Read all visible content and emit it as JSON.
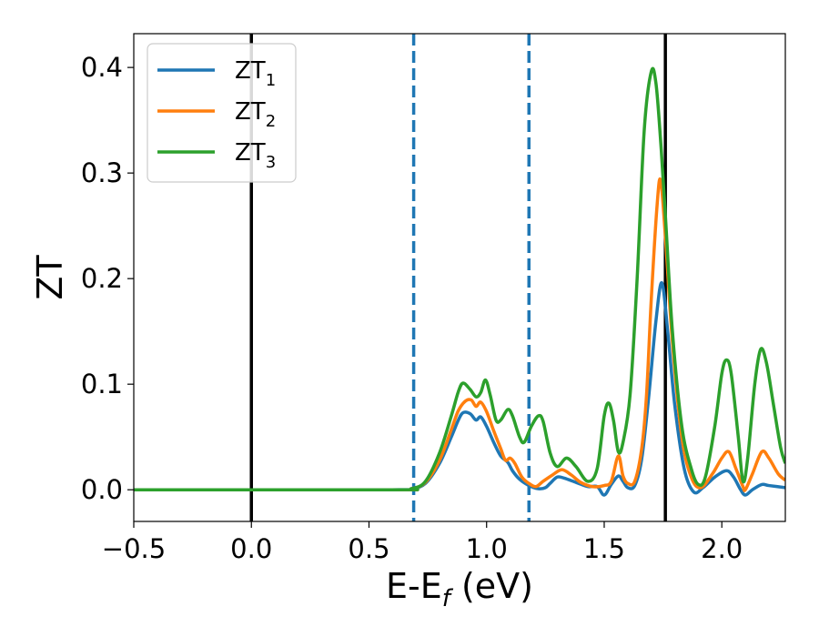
{
  "chart_data": {
    "type": "line",
    "xlabel": {
      "main": "E-E",
      "sub": "f",
      "unit": " (eV)"
    },
    "ylabel": "ZT",
    "xlim": [
      -0.5,
      2.27
    ],
    "ylim": [
      -0.03,
      0.432
    ],
    "x_ticks": [
      -0.5,
      0.0,
      0.5,
      1.0,
      1.5,
      2.0
    ],
    "x_tick_labels": [
      "−0.5",
      "0.0",
      "0.5",
      "1.0",
      "1.5",
      "2.0"
    ],
    "y_ticks": [
      0.0,
      0.1,
      0.2,
      0.3,
      0.4
    ],
    "y_tick_labels": [
      "0.0",
      "0.1",
      "0.2",
      "0.3",
      "0.4"
    ],
    "grid": false,
    "legend_position": "top-left",
    "vertical_lines": [
      {
        "x": 0.0,
        "style": "solid",
        "color": "#000000"
      },
      {
        "x": 0.69,
        "style": "dashed",
        "color": "#1f77b4"
      },
      {
        "x": 1.18,
        "style": "dashed",
        "color": "#1f77b4"
      },
      {
        "x": 1.76,
        "style": "solid",
        "color": "#000000"
      }
    ],
    "series": [
      {
        "name": "ZT",
        "sub": "1",
        "color": "#1f77b4",
        "points": [
          [
            -0.5,
            0
          ],
          [
            0.6,
            0
          ],
          [
            0.68,
            0.001
          ],
          [
            0.74,
            0.006
          ],
          [
            0.8,
            0.025
          ],
          [
            0.85,
            0.05
          ],
          [
            0.88,
            0.066
          ],
          [
            0.9,
            0.073
          ],
          [
            0.93,
            0.072
          ],
          [
            0.955,
            0.066
          ],
          [
            0.975,
            0.069
          ],
          [
            1.0,
            0.06
          ],
          [
            1.03,
            0.045
          ],
          [
            1.06,
            0.032
          ],
          [
            1.09,
            0.026
          ],
          [
            1.11,
            0.018
          ],
          [
            1.14,
            0.01
          ],
          [
            1.18,
            0.004
          ],
          [
            1.22,
            0.001
          ],
          [
            1.25,
            0.002
          ],
          [
            1.27,
            0.006
          ],
          [
            1.3,
            0.012
          ],
          [
            1.33,
            0.011
          ],
          [
            1.38,
            0.007
          ],
          [
            1.43,
            0.003
          ],
          [
            1.47,
            0.003
          ],
          [
            1.5,
            -0.005
          ],
          [
            1.53,
            0.005
          ],
          [
            1.56,
            0.013
          ],
          [
            1.58,
            0.008
          ],
          [
            1.6,
            0.002
          ],
          [
            1.63,
            0.004
          ],
          [
            1.66,
            0.03
          ],
          [
            1.69,
            0.09
          ],
          [
            1.72,
            0.16
          ],
          [
            1.745,
            0.196
          ],
          [
            1.77,
            0.15
          ],
          [
            1.8,
            0.08
          ],
          [
            1.84,
            0.02
          ],
          [
            1.88,
            -0.002
          ],
          [
            1.92,
            0.002
          ],
          [
            1.97,
            0.012
          ],
          [
            2.02,
            0.018
          ],
          [
            2.05,
            0.012
          ],
          [
            2.08,
            0.0
          ],
          [
            2.1,
            -0.005
          ],
          [
            2.13,
            0.0
          ],
          [
            2.17,
            0.005
          ],
          [
            2.2,
            0.004
          ],
          [
            2.27,
            0.002
          ]
        ]
      },
      {
        "name": "ZT",
        "sub": "2",
        "color": "#ff7f0e",
        "points": [
          [
            -0.5,
            0
          ],
          [
            0.6,
            0
          ],
          [
            0.68,
            0.001
          ],
          [
            0.74,
            0.007
          ],
          [
            0.8,
            0.028
          ],
          [
            0.85,
            0.057
          ],
          [
            0.88,
            0.075
          ],
          [
            0.91,
            0.084
          ],
          [
            0.935,
            0.085
          ],
          [
            0.955,
            0.079
          ],
          [
            0.975,
            0.083
          ],
          [
            1.0,
            0.074
          ],
          [
            1.03,
            0.056
          ],
          [
            1.06,
            0.039
          ],
          [
            1.08,
            0.028
          ],
          [
            1.1,
            0.03
          ],
          [
            1.12,
            0.025
          ],
          [
            1.15,
            0.012
          ],
          [
            1.18,
            0.006
          ],
          [
            1.21,
            0.003
          ],
          [
            1.24,
            0.008
          ],
          [
            1.28,
            0.014
          ],
          [
            1.32,
            0.019
          ],
          [
            1.36,
            0.014
          ],
          [
            1.4,
            0.007
          ],
          [
            1.45,
            0.003
          ],
          [
            1.5,
            0.004
          ],
          [
            1.53,
            0.008
          ],
          [
            1.56,
            0.032
          ],
          [
            1.58,
            0.013
          ],
          [
            1.6,
            0.006
          ],
          [
            1.63,
            0.008
          ],
          [
            1.66,
            0.04
          ],
          [
            1.68,
            0.09
          ],
          [
            1.7,
            0.18
          ],
          [
            1.725,
            0.27
          ],
          [
            1.74,
            0.293
          ],
          [
            1.76,
            0.24
          ],
          [
            1.79,
            0.14
          ],
          [
            1.83,
            0.05
          ],
          [
            1.87,
            0.012
          ],
          [
            1.91,
            0.002
          ],
          [
            1.96,
            0.015
          ],
          [
            2.0,
            0.03
          ],
          [
            2.03,
            0.036
          ],
          [
            2.06,
            0.02
          ],
          [
            2.09,
            0.003
          ],
          [
            2.1,
            0.0
          ],
          [
            2.13,
            0.015
          ],
          [
            2.17,
            0.036
          ],
          [
            2.2,
            0.03
          ],
          [
            2.24,
            0.015
          ],
          [
            2.27,
            0.009
          ]
        ]
      },
      {
        "name": "ZT",
        "sub": "3",
        "color": "#2ca02c",
        "points": [
          [
            -0.5,
            0
          ],
          [
            0.6,
            0
          ],
          [
            0.68,
            0.001
          ],
          [
            0.74,
            0.008
          ],
          [
            0.8,
            0.035
          ],
          [
            0.85,
            0.07
          ],
          [
            0.88,
            0.093
          ],
          [
            0.9,
            0.101
          ],
          [
            0.93,
            0.095
          ],
          [
            0.955,
            0.088
          ],
          [
            0.975,
            0.092
          ],
          [
            0.995,
            0.104
          ],
          [
            1.015,
            0.09
          ],
          [
            1.04,
            0.066
          ],
          [
            1.06,
            0.066
          ],
          [
            1.09,
            0.076
          ],
          [
            1.11,
            0.07
          ],
          [
            1.14,
            0.05
          ],
          [
            1.16,
            0.045
          ],
          [
            1.19,
            0.06
          ],
          [
            1.22,
            0.07
          ],
          [
            1.24,
            0.065
          ],
          [
            1.27,
            0.035
          ],
          [
            1.3,
            0.022
          ],
          [
            1.34,
            0.03
          ],
          [
            1.38,
            0.022
          ],
          [
            1.43,
            0.008
          ],
          [
            1.47,
            0.02
          ],
          [
            1.5,
            0.07
          ],
          [
            1.52,
            0.082
          ],
          [
            1.54,
            0.065
          ],
          [
            1.56,
            0.036
          ],
          [
            1.58,
            0.045
          ],
          [
            1.61,
            0.09
          ],
          [
            1.64,
            0.2
          ],
          [
            1.67,
            0.34
          ],
          [
            1.7,
            0.396
          ],
          [
            1.72,
            0.385
          ],
          [
            1.74,
            0.33
          ],
          [
            1.76,
            0.26
          ],
          [
            1.79,
            0.15
          ],
          [
            1.83,
            0.06
          ],
          [
            1.87,
            0.02
          ],
          [
            1.9,
            0.005
          ],
          [
            1.93,
            0.012
          ],
          [
            1.97,
            0.06
          ],
          [
            2.0,
            0.11
          ],
          [
            2.02,
            0.123
          ],
          [
            2.04,
            0.11
          ],
          [
            2.07,
            0.05
          ],
          [
            2.09,
            0.008
          ],
          [
            2.11,
            0.03
          ],
          [
            2.14,
            0.1
          ],
          [
            2.165,
            0.133
          ],
          [
            2.19,
            0.12
          ],
          [
            2.22,
            0.08
          ],
          [
            2.25,
            0.04
          ],
          [
            2.27,
            0.025
          ]
        ]
      }
    ]
  }
}
